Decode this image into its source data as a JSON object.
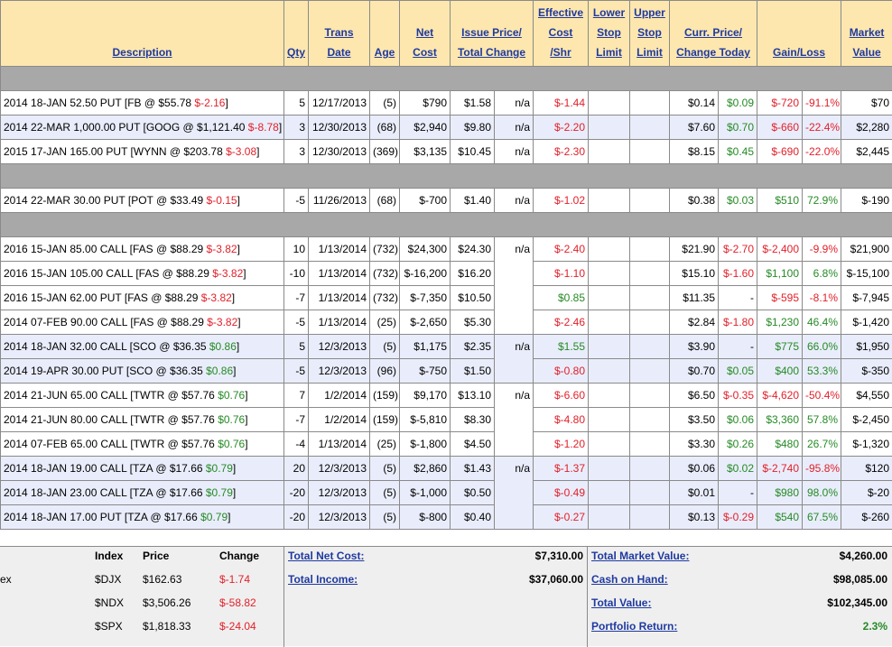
{
  "header": {
    "columns": [
      [
        "Description"
      ],
      [
        "Qty"
      ],
      [
        "Trans",
        "Date"
      ],
      [
        "Age"
      ],
      [
        "Net",
        "Cost"
      ],
      [
        "Issue Price/",
        "Total Change"
      ],
      [
        "Effective",
        "Cost",
        "/Shr"
      ],
      [
        "Lower",
        "Stop",
        "Limit"
      ],
      [
        "Upper",
        "Stop",
        "Limit"
      ],
      [
        "Curr. Price/",
        "Change Today"
      ],
      [
        "Gain/Loss"
      ],
      [
        "Market",
        "Value"
      ]
    ]
  },
  "sections": [
    {
      "blocks": [
        {
          "effective": "n/a",
          "rows": [
            {
              "description": [
                "2014 18-JAN 52.50 PUT [FB @ $55.78 ",
                "$-2.16",
                "]"
              ],
              "cells": [
                "5",
                "12/17/2013",
                "(5)",
                "$790",
                "$1.58",
                "$-1.44",
                "$0.14",
                "$0.09",
                "$-720",
                "-91.1%",
                "$70"
              ]
            }
          ]
        },
        {
          "effective": "n/a",
          "highlight": true,
          "rows": [
            {
              "description": [
                "2014 22-MAR 1,000.00 PUT [GOOG @ $1,121.40 ",
                "$-8.78",
                "]"
              ],
              "cells": [
                "3",
                "12/30/2013",
                "(68)",
                "$2,940",
                "$9.80",
                "$-2.20",
                "$7.60",
                "$0.70",
                "$-660",
                "-22.4%",
                "$2,280"
              ]
            }
          ]
        },
        {
          "effective": "n/a",
          "rows": [
            {
              "description": [
                "2015 17-JAN 165.00 PUT [WYNN @ $203.78 ",
                "$-3.08",
                "]"
              ],
              "cells": [
                "3",
                "12/30/2013",
                "(369)",
                "$3,135",
                "$10.45",
                "$-2.30",
                "$8.15",
                "$0.45",
                "$-690",
                "-22.0%",
                "$2,445"
              ]
            }
          ]
        }
      ]
    },
    {
      "blocks": [
        {
          "effective": "n/a",
          "rows": [
            {
              "description": [
                "2014 22-MAR 30.00 PUT [POT @ $33.49 ",
                "$-0.15",
                "]"
              ],
              "cells": [
                "-5",
                "11/26/2013",
                "(68)",
                "$-700",
                "$1.40",
                "$-1.02",
                "$0.38",
                "$0.03",
                "$510",
                "72.9%",
                "$-190"
              ]
            }
          ]
        }
      ]
    },
    {
      "blocks": [
        {
          "effective": "n/a",
          "rows": [
            {
              "description": [
                "2016 15-JAN 85.00 CALL [FAS @ $88.29 ",
                "$-3.82",
                "]"
              ],
              "cells": [
                "10",
                "1/13/2014",
                "(732)",
                "$24,300",
                "$24.30",
                "$-2.40",
                "$21.90",
                "$-2.70",
                "$-2,400",
                "-9.9%",
                "$21,900"
              ]
            },
            {
              "description": [
                "2016 15-JAN 105.00 CALL [FAS @ $88.29 ",
                "$-3.82",
                "]"
              ],
              "cells": [
                "-10",
                "1/13/2014",
                "(732)",
                "$-16,200",
                "$16.20",
                "$-1.10",
                "$15.10",
                "$-1.60",
                "$1,100",
                "6.8%",
                "$-15,100"
              ]
            },
            {
              "description": [
                "2016 15-JAN 62.00 PUT [FAS @ $88.29 ",
                "$-3.82",
                "]"
              ],
              "cells": [
                "-7",
                "1/13/2014",
                "(732)",
                "$-7,350",
                "$10.50",
                "$0.85",
                "$11.35",
                "-",
                "$-595",
                "-8.1%",
                "$-7,945"
              ]
            },
            {
              "description": [
                "2014 07-FEB 90.00 CALL [FAS @ $88.29 ",
                "$-3.82",
                "]"
              ],
              "cells": [
                "-5",
                "1/13/2014",
                "(25)",
                "$-2,650",
                "$5.30",
                "$-2.46",
                "$2.84",
                "$-1.80",
                "$1,230",
                "46.4%",
                "$-1,420"
              ]
            }
          ]
        },
        {
          "effective": "n/a",
          "highlight": true,
          "rows": [
            {
              "description": [
                "2014 18-JAN 32.00 CALL [SCO @ $36.35 ",
                "$0.86",
                "]"
              ],
              "cells": [
                "5",
                "12/3/2013",
                "(5)",
                "$1,175",
                "$2.35",
                "$1.55",
                "$3.90",
                "-",
                "$775",
                "66.0%",
                "$1,950"
              ]
            },
            {
              "description": [
                "2014 19-APR 30.00 PUT [SCO @ $36.35 ",
                "$0.86",
                "]"
              ],
              "cells": [
                "-5",
                "12/3/2013",
                "(96)",
                "$-750",
                "$1.50",
                "$-0.80",
                "$0.70",
                "$0.05",
                "$400",
                "53.3%",
                "$-350"
              ]
            }
          ]
        },
        {
          "effective": "n/a",
          "rows": [
            {
              "description": [
                "2014 21-JUN 65.00 CALL [TWTR @ $57.76 ",
                "$0.76",
                "]"
              ],
              "cells": [
                "7",
                "1/2/2014",
                "(159)",
                "$9,170",
                "$13.10",
                "$-6.60",
                "$6.50",
                "$-0.35",
                "$-4,620",
                "-50.4%",
                "$4,550"
              ]
            },
            {
              "description": [
                "2014 21-JUN 80.00 CALL [TWTR @ $57.76 ",
                "$0.76",
                "]"
              ],
              "cells": [
                "-7",
                "1/2/2014",
                "(159)",
                "$-5,810",
                "$8.30",
                "$-4.80",
                "$3.50",
                "$0.06",
                "$3,360",
                "57.8%",
                "$-2,450"
              ]
            },
            {
              "description": [
                "2014 07-FEB 65.00 CALL [TWTR @ $57.76 ",
                "$0.76",
                "]"
              ],
              "cells": [
                "-4",
                "1/13/2014",
                "(25)",
                "$-1,800",
                "$4.50",
                "$-1.20",
                "$3.30",
                "$0.26",
                "$480",
                "26.7%",
                "$-1,320"
              ]
            }
          ]
        },
        {
          "effective": "n/a",
          "highlight": true,
          "rows": [
            {
              "description": [
                "2014 18-JAN 19.00 CALL [TZA @ $17.66 ",
                "$0.79",
                "]"
              ],
              "cells": [
                "20",
                "12/3/2013",
                "(5)",
                "$2,860",
                "$1.43",
                "$-1.37",
                "$0.06",
                "$0.02",
                "$-2,740",
                "-95.8%",
                "$120"
              ]
            },
            {
              "description": [
                "2014 18-JAN 23.00 CALL [TZA @ $17.66 ",
                "$0.79",
                "]"
              ],
              "cells": [
                "-20",
                "12/3/2013",
                "(5)",
                "$-1,000",
                "$0.50",
                "$-0.49",
                "$0.01",
                "-",
                "$980",
                "98.0%",
                "$-20"
              ]
            },
            {
              "description": [
                "2014 18-JAN 17.00 PUT [TZA @ $17.66 ",
                "$0.79",
                "]"
              ],
              "cells": [
                "-20",
                "12/3/2013",
                "(5)",
                "$-800",
                "$0.40",
                "$-0.27",
                "$0.13",
                "$-0.29",
                "$540",
                "67.5%",
                "$-260"
              ]
            }
          ]
        }
      ]
    }
  ],
  "footer": {
    "indices": {
      "side_label": "ex",
      "headers": [
        "Index",
        "Price",
        "Change"
      ],
      "rows": [
        [
          "$DJX",
          "$162.63",
          "$-1.74"
        ],
        [
          "$NDX",
          "$3,506.26",
          "$-58.82"
        ],
        [
          "$SPX",
          "$1,818.33",
          "$-24.04"
        ]
      ]
    },
    "totals_left": [
      {
        "label": "Total Net Cost:",
        "value": "$7,310.00"
      },
      {
        "label": "Total Income:",
        "value": "$37,060.00"
      }
    ],
    "totals_right": [
      {
        "label": "Total Market Value:",
        "value": "$4,260.00"
      },
      {
        "label": "Cash on Hand:",
        "value": "$98,085.00"
      },
      {
        "label": "Total Value:",
        "value": "$102,345.00"
      },
      {
        "label": "Portfolio Return:",
        "value": "2.3%"
      }
    ]
  }
}
